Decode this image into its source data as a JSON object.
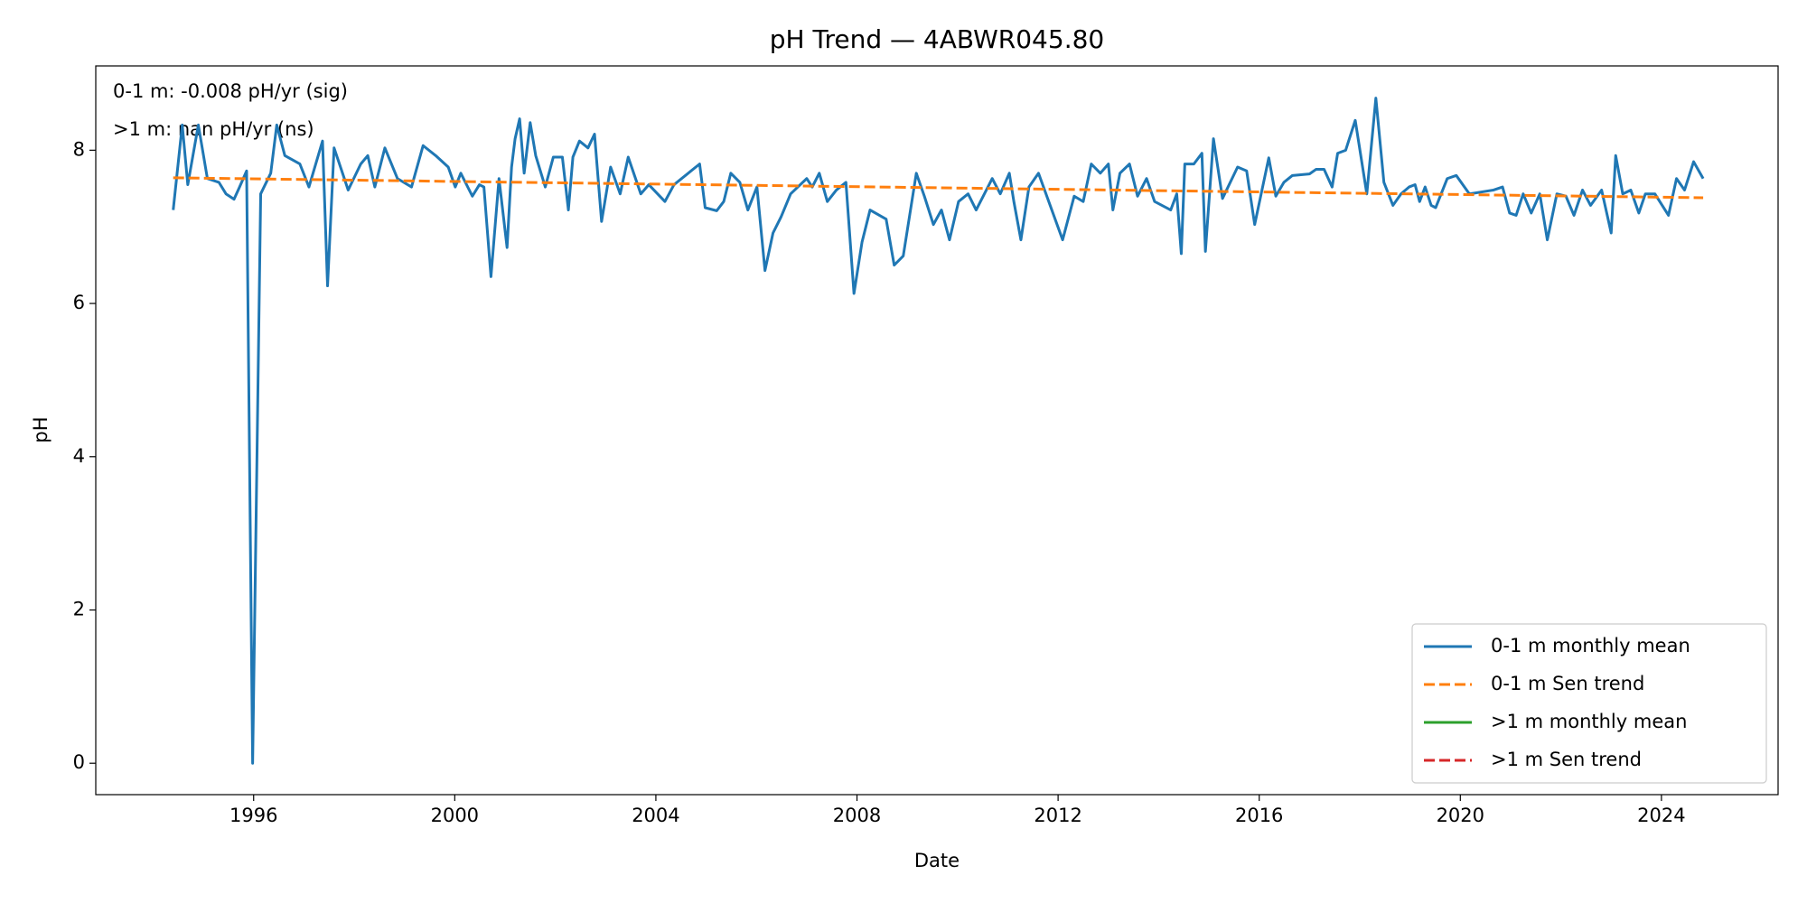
{
  "chart_data": {
    "type": "line",
    "title": "pH Trend — 4ABWR045.80",
    "xlabel": "Date",
    "ylabel": "pH",
    "annotations": [
      "0-1 m: -0.008 pH/yr (sig)",
      ">1 m: nan pH/yr (ns)"
    ],
    "xlim": [
      1992.86,
      2026.32
    ],
    "ylim": [
      -0.41,
      9.1
    ],
    "xticks": [
      1996,
      2000,
      2004,
      2008,
      2012,
      2016,
      2020,
      2024
    ],
    "yticks": [
      0,
      2,
      4,
      6,
      8
    ],
    "legend": "lower right",
    "series": [
      {
        "name": "0-1 m monthly mean",
        "color": "#1f77b4",
        "linestyle": "solid",
        "x": [
          1994.4,
          1994.58,
          1994.69,
          1994.9,
          1995.08,
          1995.31,
          1995.45,
          1995.61,
          1995.72,
          1995.86,
          1995.98,
          1996.14,
          1996.34,
          1996.46,
          1996.62,
          1996.92,
          1997.1,
          1997.37,
          1997.47,
          1997.6,
          1997.88,
          1998.13,
          1998.27,
          1998.41,
          1998.61,
          1998.86,
          1999.14,
          1999.37,
          1999.62,
          1999.87,
          2000.01,
          2000.12,
          2000.35,
          2000.49,
          2000.58,
          2000.72,
          2000.88,
          2001.04,
          2001.13,
          2001.2,
          2001.29,
          2001.38,
          2001.5,
          2001.61,
          2001.8,
          2001.96,
          2002.14,
          2002.26,
          2002.35,
          2002.48,
          2002.65,
          2002.78,
          2002.92,
          2003.1,
          2003.29,
          2003.45,
          2003.7,
          2003.86,
          2004.18,
          2004.36,
          2004.87,
          2004.98,
          2005.21,
          2005.35,
          2005.49,
          2005.67,
          2005.83,
          2006.01,
          2006.17,
          2006.33,
          2006.49,
          2006.68,
          2007.0,
          2007.11,
          2007.25,
          2007.41,
          2007.59,
          2007.78,
          2007.94,
          2008.1,
          2008.26,
          2008.58,
          2008.74,
          2008.92,
          2009.18,
          2009.34,
          2009.52,
          2009.68,
          2009.84,
          2010.02,
          2010.21,
          2010.37,
          2010.69,
          2010.85,
          2011.03,
          2011.12,
          2011.26,
          2011.42,
          2011.61,
          2012.09,
          2012.32,
          2012.5,
          2012.66,
          2012.84,
          2013.0,
          2013.09,
          2013.23,
          2013.42,
          2013.58,
          2013.76,
          2013.92,
          2014.24,
          2014.36,
          2014.45,
          2014.52,
          2014.7,
          2014.86,
          2014.93,
          2015.09,
          2015.27,
          2015.57,
          2015.75,
          2015.91,
          2016.19,
          2016.33,
          2016.49,
          2016.66,
          2017.0,
          2017.13,
          2017.29,
          2017.45,
          2017.56,
          2017.72,
          2017.91,
          2018.14,
          2018.32,
          2018.48,
          2018.66,
          2018.82,
          2018.98,
          2019.1,
          2019.19,
          2019.3,
          2019.42,
          2019.51,
          2019.74,
          2019.92,
          2020.18,
          2020.66,
          2020.84,
          2020.98,
          2021.11,
          2021.25,
          2021.41,
          2021.58,
          2021.73,
          2021.92,
          2022.1,
          2022.26,
          2022.43,
          2022.59,
          2022.81,
          2023.0,
          2023.09,
          2023.23,
          2023.39,
          2023.55,
          2023.68,
          2023.87,
          2024.14,
          2024.3,
          2024.46,
          2024.64,
          2024.83
        ],
        "values": [
          7.22,
          8.33,
          7.55,
          8.33,
          7.63,
          7.58,
          7.43,
          7.36,
          7.52,
          7.73,
          0,
          7.43,
          7.7,
          8.33,
          7.93,
          7.82,
          7.52,
          8.12,
          6.23,
          8.03,
          7.48,
          7.82,
          7.93,
          7.52,
          8.03,
          7.63,
          7.52,
          8.06,
          7.93,
          7.78,
          7.52,
          7.7,
          7.4,
          7.55,
          7.52,
          6.35,
          7.63,
          6.73,
          7.78,
          8.15,
          8.41,
          7.7,
          8.36,
          7.93,
          7.52,
          7.91,
          7.91,
          7.22,
          7.91,
          8.12,
          8.03,
          8.21,
          7.07,
          7.78,
          7.43,
          7.91,
          7.43,
          7.55,
          7.33,
          7.55,
          7.82,
          7.25,
          7.21,
          7.33,
          7.7,
          7.58,
          7.22,
          7.52,
          6.43,
          6.92,
          7.13,
          7.43,
          7.63,
          7.52,
          7.7,
          7.33,
          7.48,
          7.58,
          6.13,
          6.8,
          7.22,
          7.1,
          6.5,
          6.62,
          7.7,
          7.4,
          7.03,
          7.22,
          6.83,
          7.33,
          7.43,
          7.22,
          7.63,
          7.43,
          7.7,
          7.33,
          6.83,
          7.52,
          7.7,
          6.83,
          7.4,
          7.33,
          7.82,
          7.7,
          7.82,
          7.22,
          7.7,
          7.82,
          7.4,
          7.63,
          7.33,
          7.22,
          7.43,
          6.65,
          7.82,
          7.82,
          7.96,
          6.68,
          8.15,
          7.37,
          7.78,
          7.73,
          7.03,
          7.9,
          7.4,
          7.58,
          7.67,
          7.69,
          7.75,
          7.75,
          7.52,
          7.96,
          8.0,
          8.39,
          7.43,
          8.68,
          7.58,
          7.28,
          7.43,
          7.52,
          7.55,
          7.33,
          7.52,
          7.28,
          7.25,
          7.63,
          7.67,
          7.43,
          7.48,
          7.52,
          7.18,
          7.15,
          7.43,
          7.18,
          7.43,
          6.83,
          7.43,
          7.4,
          7.15,
          7.48,
          7.28,
          7.48,
          6.92,
          7.93,
          7.43,
          7.48,
          7.18,
          7.43,
          7.43,
          7.15,
          7.63,
          7.48,
          7.85,
          7.63
        ]
      },
      {
        "name": "0-1 m Sen trend",
        "color": "#ff7f0e",
        "linestyle": "dashed",
        "x": [
          1994.4,
          2024.83
        ],
        "values": [
          7.64,
          7.38
        ]
      },
      {
        "name": ">1 m monthly mean",
        "color": "#2ca02c",
        "linestyle": "solid",
        "x": [],
        "values": []
      },
      {
        "name": ">1 m Sen trend",
        "color": "#d62728",
        "linestyle": "dashed",
        "x": [],
        "values": []
      }
    ]
  }
}
